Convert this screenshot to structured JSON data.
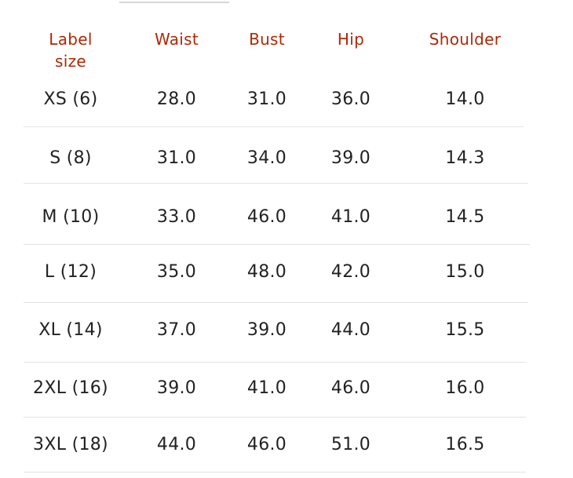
{
  "size_chart": {
    "headers": {
      "label_size_line1": "Label",
      "label_size_line2": "size",
      "waist": "Waist",
      "bust": "Bust",
      "hip": "Hip",
      "shoulder": "Shoulder"
    },
    "rows": [
      {
        "label": "XS (6)",
        "waist": "28.0",
        "bust": "31.0",
        "hip": "36.0",
        "shoulder": "14.0"
      },
      {
        "label": "S (8)",
        "waist": "31.0",
        "bust": "34.0",
        "hip": "39.0",
        "shoulder": "14.3"
      },
      {
        "label": "M (10)",
        "waist": "33.0",
        "bust": "46.0",
        "hip": "41.0",
        "shoulder": "14.5"
      },
      {
        "label": "L (12)",
        "waist": "35.0",
        "bust": "48.0",
        "hip": "42.0",
        "shoulder": "15.0"
      },
      {
        "label": "XL (14)",
        "waist": "37.0",
        "bust": "39.0",
        "hip": "44.0",
        "shoulder": "15.5"
      },
      {
        "label": "2XL (16)",
        "waist": "39.0",
        "bust": "41.0",
        "hip": "46.0",
        "shoulder": "16.0"
      },
      {
        "label": "3XL (18)",
        "waist": "44.0",
        "bust": "46.0",
        "hip": "51.0",
        "shoulder": "16.5"
      }
    ],
    "colors": {
      "header_text": "#b12704",
      "cell_text": "#222222",
      "divider": "#e2e2e2"
    }
  }
}
